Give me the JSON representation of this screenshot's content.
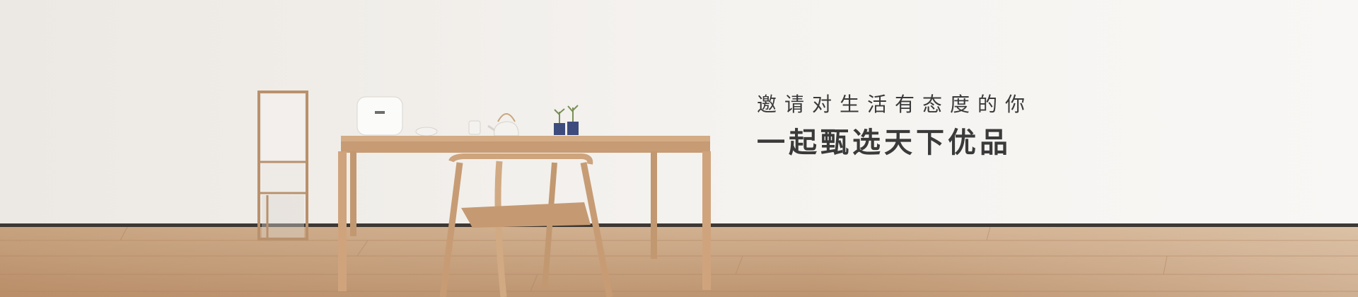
{
  "banner": {
    "subtitle": "邀请对生活有态度的你",
    "headline": "一起甄选天下优品",
    "colors": {
      "wall": "#f1eeea",
      "floor": "#c9a27d",
      "wood": "#d2ab86",
      "text": "#3a3a3a"
    }
  }
}
